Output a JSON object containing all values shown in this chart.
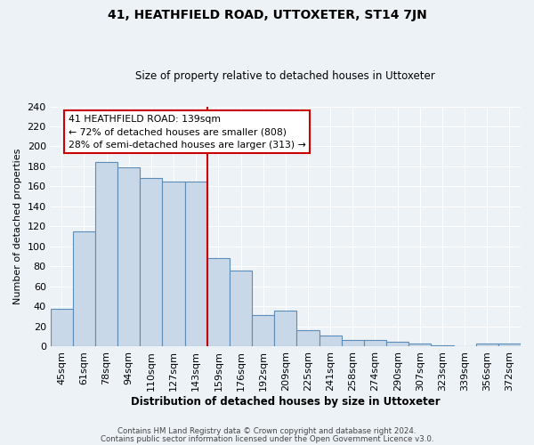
{
  "title": "41, HEATHFIELD ROAD, UTTOXETER, ST14 7JN",
  "subtitle": "Size of property relative to detached houses in Uttoxeter",
  "xlabel": "Distribution of detached houses by size in Uttoxeter",
  "ylabel": "Number of detached properties",
  "categories": [
    "45sqm",
    "61sqm",
    "78sqm",
    "94sqm",
    "110sqm",
    "127sqm",
    "143sqm",
    "159sqm",
    "176sqm",
    "192sqm",
    "209sqm",
    "225sqm",
    "241sqm",
    "258sqm",
    "274sqm",
    "290sqm",
    "307sqm",
    "323sqm",
    "339sqm",
    "356sqm",
    "372sqm"
  ],
  "values": [
    37,
    115,
    184,
    179,
    168,
    165,
    165,
    88,
    76,
    31,
    36,
    16,
    11,
    6,
    6,
    4,
    3,
    1,
    0,
    3,
    3
  ],
  "bar_color": "#c8d8e8",
  "bar_edge_color": "#5b8db8",
  "red_line_x": 6.5,
  "annotation_title": "41 HEATHFIELD ROAD: 139sqm",
  "annotation_line1": "← 72% of detached houses are smaller (808)",
  "annotation_line2": "28% of semi-detached houses are larger (313) →",
  "annotation_box_color": "#ffffff",
  "annotation_box_edge_color": "#cc0000",
  "red_line_color": "#cc0000",
  "ylim": [
    0,
    240
  ],
  "yticks": [
    0,
    20,
    40,
    60,
    80,
    100,
    120,
    140,
    160,
    180,
    200,
    220,
    240
  ],
  "background_color": "#edf2f7",
  "grid_color": "#ffffff",
  "footer1": "Contains HM Land Registry data © Crown copyright and database right 2024.",
  "footer2": "Contains public sector information licensed under the Open Government Licence v3.0."
}
